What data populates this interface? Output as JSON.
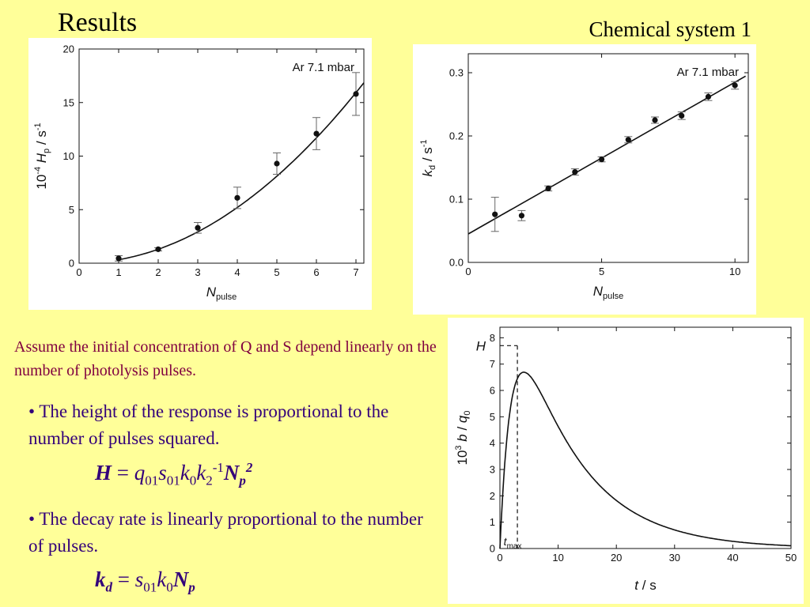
{
  "slide": {
    "title": "Results",
    "subtitle": "Chemical system 1",
    "intro": "Assume the initial concentration of Q and S depend linearly on the number of photolysis pulses.",
    "bullet_1": "• The height of the response is proportional to the number of pulses squared.",
    "bullet_2": "• The decay rate is linearly proportional to the number of pulses.",
    "eq_h": {
      "lhs": "H",
      "eq": " = ",
      "q": "q",
      "q_sub": "01",
      "s": "s",
      "s_sub": "01",
      "k0": "k",
      "k0_sub": "0",
      "k2": "k",
      "k2_sub": "2",
      "k2_sup": "-1",
      "n": "N",
      "n_sub": "p",
      "n_sup": "2"
    },
    "eq_kd": {
      "lhs": "k",
      "lhs_sub": "d",
      "eq": " = ",
      "s": "s",
      "s_sub": "01",
      "k0": "k",
      "k0_sub": "0",
      "n": "N",
      "n_sub": "p"
    }
  },
  "colors": {
    "background": "#ffff99",
    "intro_text": "#800040",
    "bullet_text": "#33007a",
    "plot_line": "#111111"
  },
  "chart_data": [
    {
      "type": "scatter",
      "annotation": "Ar 7.1 mbar",
      "xlabel": {
        "main": "N",
        "sub": "pulse"
      },
      "ylabel": {
        "prefix": "10",
        "prefix_sup": "-4",
        "main": "H",
        "sub": "p",
        "unit": "/ s",
        "unit_sup": "-1"
      },
      "xlim": [
        0,
        7.2
      ],
      "ylim": [
        0,
        20
      ],
      "xticks": [
        0,
        1,
        2,
        3,
        4,
        5,
        6,
        7
      ],
      "yticks": [
        0,
        5,
        10,
        15,
        20
      ],
      "points": [
        {
          "x": 1,
          "y": 0.45,
          "err": 0.25
        },
        {
          "x": 2,
          "y": 1.3,
          "err": 0.15
        },
        {
          "x": 3,
          "y": 3.3,
          "err": 0.5
        },
        {
          "x": 4,
          "y": 6.1,
          "err": 1.0
        },
        {
          "x": 5,
          "y": 9.3,
          "err": 1.0
        },
        {
          "x": 6,
          "y": 12.1,
          "err": 1.5
        },
        {
          "x": 7,
          "y": 15.8,
          "err": 2.0
        }
      ],
      "fit": {
        "kind": "quadratic",
        "a": 0.325,
        "b": 0.0,
        "c": 0.0,
        "x_range": [
          1,
          7.2
        ]
      }
    },
    {
      "type": "scatter",
      "annotation": "Ar 7.1 mbar",
      "xlabel": {
        "main": "N",
        "sub": "pulse"
      },
      "ylabel": {
        "main": "k",
        "sub": "d",
        "unit": "/ s",
        "unit_sup": "-1"
      },
      "xlim": [
        0,
        10.5
      ],
      "ylim": [
        0,
        0.33
      ],
      "xticks": [
        0,
        5,
        10
      ],
      "yticks": [
        0.0,
        0.1,
        0.2,
        0.3
      ],
      "ytick_labels": [
        "0.0",
        "0.1",
        "0.2",
        "0.3"
      ],
      "points": [
        {
          "x": 1,
          "y": 0.076,
          "err": 0.027
        },
        {
          "x": 2,
          "y": 0.074,
          "err": 0.008
        },
        {
          "x": 3,
          "y": 0.117,
          "err": 0.004
        },
        {
          "x": 4,
          "y": 0.143,
          "err": 0.005
        },
        {
          "x": 5,
          "y": 0.163,
          "err": 0.004
        },
        {
          "x": 6,
          "y": 0.194,
          "err": 0.005
        },
        {
          "x": 7,
          "y": 0.225,
          "err": 0.005
        },
        {
          "x": 8,
          "y": 0.232,
          "err": 0.006
        },
        {
          "x": 9,
          "y": 0.262,
          "err": 0.006
        },
        {
          "x": 10,
          "y": 0.28,
          "err": 0.006
        }
      ],
      "fit": {
        "kind": "linear",
        "slope": 0.024,
        "intercept": 0.045,
        "x_range": [
          0,
          10.4
        ]
      }
    },
    {
      "type": "line",
      "xlabel": {
        "main": "t",
        "unit": "/ s"
      },
      "ylabel": {
        "prefix": "10",
        "prefix_sup": "3",
        "main": "b",
        "unit": "/ q",
        "unit_sub": "0"
      },
      "xlim": [
        0,
        50
      ],
      "ylim": [
        0,
        8.4
      ],
      "xticks": [
        0,
        10,
        20,
        30,
        40,
        50
      ],
      "yticks": [
        0,
        1,
        2,
        3,
        4,
        5,
        6,
        7,
        8
      ],
      "curve": {
        "kind": "rise-decay",
        "k_decay": 0.095,
        "k_rise": 0.5,
        "scale": 12.2
      },
      "marker_h": {
        "label": "H",
        "value": 7.7
      },
      "marker_tmax": {
        "label": "t",
        "label_sub": "max",
        "value": 3.0
      }
    }
  ]
}
